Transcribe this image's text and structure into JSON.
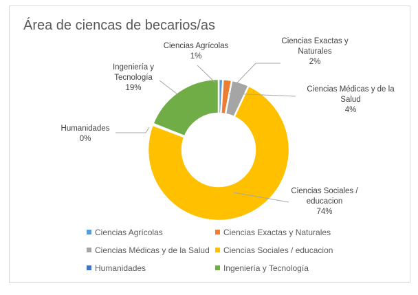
{
  "chart_data": {
    "type": "pie",
    "variant": "doughnut",
    "title": "Área de ciencas de becarios/as",
    "legend_position": "bottom",
    "categories": [
      "Ciencias Agrícolas",
      "Ciencias Exactas y Naturales",
      "Ciencias Médicas y de la Salud",
      "Ciencias Sociales / educacion",
      "Humanidades",
      "Ingeniería y Tecnología"
    ],
    "values": [
      1,
      2,
      4,
      74,
      0.3,
      19
    ],
    "percent_labels": [
      "1%",
      "2%",
      "4%",
      "74%",
      "0%",
      "19%"
    ],
    "colors": [
      "#5b9bd5",
      "#ed7d31",
      "#a5a5a5",
      "#ffc000",
      "#4472c4",
      "#70ad47"
    ],
    "data_labels": [
      [
        "Ciencias Agrícolas",
        "1%"
      ],
      [
        "Ciencias Exactas y",
        "Naturales",
        "2%"
      ],
      [
        "Ciencias Médicas y de la",
        "Salud",
        "4%"
      ],
      [
        "Ciencias Sociales /",
        "educacion",
        "74%"
      ],
      [
        "Humanidades",
        "0%"
      ],
      [
        "Ingeniería y",
        "Tecnología",
        "19%"
      ]
    ]
  }
}
